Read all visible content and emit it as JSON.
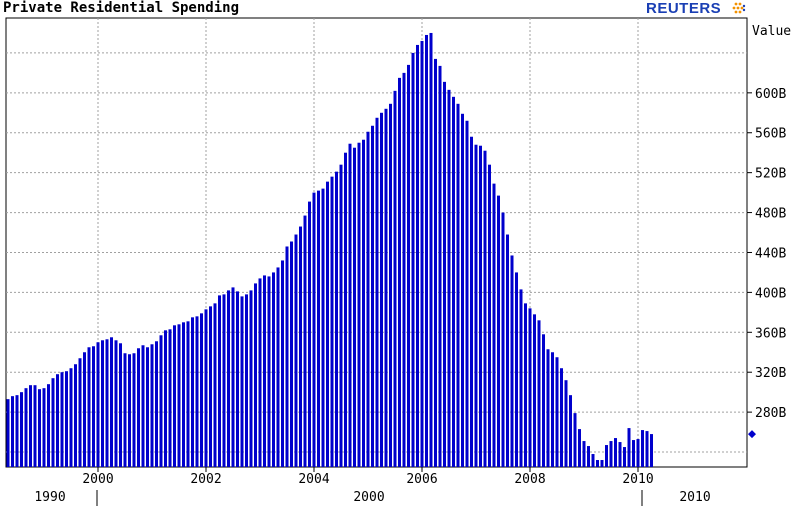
{
  "title": "Private Residential Spending",
  "brand": "REUTERS",
  "colors": {
    "bars": "#0000cc",
    "grid": "#a0a0a0",
    "marker": "#0000cc",
    "brand": "#1a3fb4"
  },
  "chart_data": {
    "type": "bar",
    "title": "Private Residential Spending",
    "ylabel": "Value",
    "ylim": [
      225,
      675
    ],
    "y_ticks": [
      280,
      320,
      360,
      400,
      440,
      480,
      520,
      560,
      600
    ],
    "y_tick_labels": [
      "280B",
      "320B",
      "360B",
      "400B",
      "440B",
      "480B",
      "520B",
      "560B",
      "600B"
    ],
    "x_tick_labels": [
      "2000",
      "2002",
      "2004",
      "2006",
      "2008",
      "2010"
    ],
    "lower_axis_labels": [
      "1990",
      "2000",
      "2010"
    ],
    "grid": true,
    "frequency": "monthly",
    "start": "1998-05",
    "last_value_marker": 258,
    "values": [
      293,
      296,
      297,
      300,
      304,
      307,
      307,
      303,
      304,
      308,
      314,
      318,
      320,
      321,
      324,
      328,
      334,
      340,
      345,
      346,
      350,
      352,
      353,
      355,
      352,
      349,
      339,
      338,
      339,
      344,
      347,
      345,
      348,
      351,
      357,
      362,
      363,
      367,
      368,
      370,
      371,
      375,
      376,
      379,
      383,
      386,
      389,
      397,
      398,
      402,
      405,
      401,
      396,
      398,
      402,
      409,
      414,
      417,
      416,
      420,
      425,
      432,
      446,
      451,
      458,
      466,
      477,
      491,
      500,
      502,
      504,
      511,
      516,
      521,
      528,
      540,
      549,
      545,
      550,
      553,
      561,
      567,
      575,
      580,
      584,
      589,
      602,
      615,
      620,
      628,
      640,
      648,
      652,
      658,
      660,
      634,
      627,
      611,
      603,
      596,
      589,
      579,
      572,
      556,
      548,
      547,
      542,
      528,
      509,
      497,
      480,
      458,
      437,
      420,
      403,
      389,
      384,
      378,
      372,
      358,
      343,
      340,
      335,
      324,
      312,
      297,
      279,
      263,
      251,
      246,
      238,
      232,
      232,
      247,
      251,
      254,
      250,
      245,
      264,
      252,
      253,
      262,
      261,
      258
    ]
  }
}
